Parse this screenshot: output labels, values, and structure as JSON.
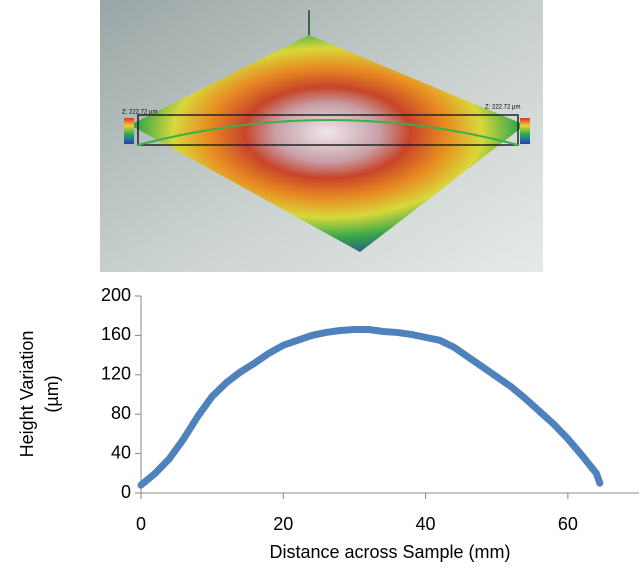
{
  "chart_data": {
    "type": "line",
    "annotations": [
      "Z: 222.72 µm",
      "Z: 222.72 µm"
    ],
    "xlabel": "Distance across Sample (mm)",
    "ylabel": [
      "Height Variation",
      "(µm)"
    ],
    "x": [
      0,
      2,
      4,
      6,
      8,
      10,
      12,
      14,
      16,
      18,
      20,
      22,
      24,
      26,
      28,
      30,
      32,
      34,
      36,
      38,
      40,
      42,
      44,
      46,
      48,
      50,
      52,
      54,
      56,
      58,
      60,
      62,
      64,
      64.5
    ],
    "series": [
      {
        "color": "#4f81bd",
        "values": [
          8,
          20,
          35,
          55,
          78,
          98,
          112,
          123,
          132,
          142,
          150,
          155,
          160,
          163,
          165,
          166,
          166,
          164,
          163,
          161,
          158,
          155,
          148,
          138,
          128,
          118,
          108,
          96,
          83,
          70,
          55,
          38,
          20,
          10
        ]
      }
    ],
    "xlim": [
      0,
      70
    ],
    "xticks": [
      0,
      20,
      40,
      60
    ],
    "ylim": [
      0,
      200
    ],
    "yticks": [
      0,
      40,
      80,
      120,
      160,
      200
    ]
  }
}
